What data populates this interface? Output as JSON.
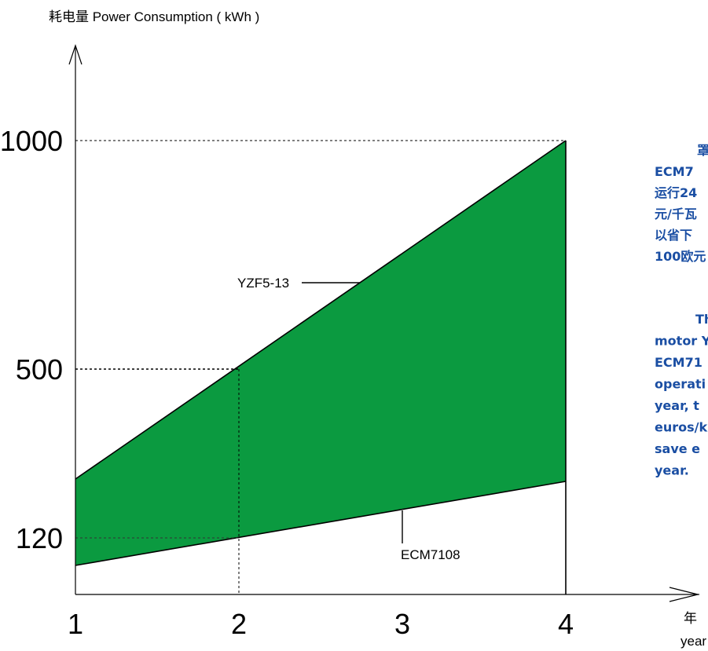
{
  "chart_data": {
    "type": "area",
    "ylabel": "耗电量 Power Consumption ( kWh )",
    "xlabel": "年",
    "xlabel_secondary": "year",
    "x_ticks": [
      1,
      2,
      3,
      4
    ],
    "y_ticks": [
      120,
      500,
      1000
    ],
    "series": [
      {
        "name": "YZF5-13",
        "x": [
          1,
          4
        ],
        "y": [
          250,
          1000
        ]
      },
      {
        "name": "ECM7108",
        "x": [
          1,
          4
        ],
        "y": [
          60,
          270
        ]
      }
    ],
    "reference_lines": [
      {
        "axis": "y",
        "value": 1000
      },
      {
        "axis": "y",
        "value": 500
      },
      {
        "axis": "y",
        "value": 120
      },
      {
        "axis": "x",
        "value": 2
      }
    ],
    "fill_color": "#0b9a40",
    "text_color": "#1a4ea3",
    "side_text": [
      {
        "lines": [
          "罩",
          "ECM7",
          "运行24",
          "元/千瓦",
          "以省下",
          "100欧元"
        ]
      },
      {
        "lines": [
          "Th",
          "motor Y",
          "ECM71",
          "operati",
          "year, t",
          "euros/k",
          "save e",
          "year."
        ]
      }
    ]
  }
}
